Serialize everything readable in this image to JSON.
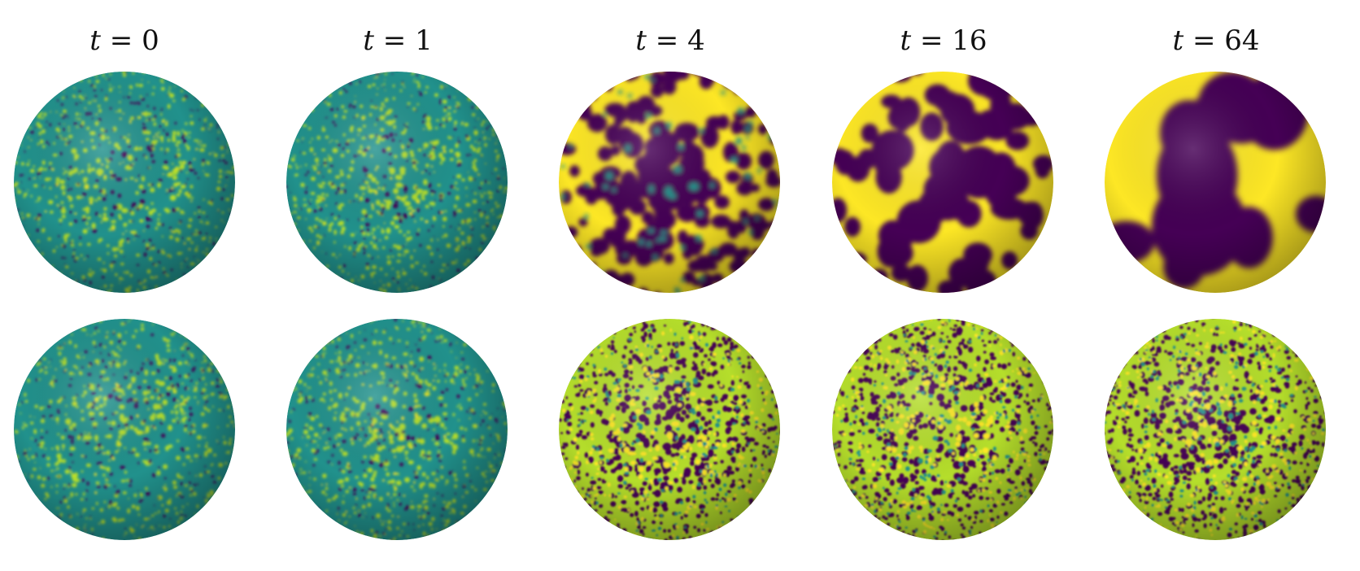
{
  "figure": {
    "columns": [
      {
        "var": "t",
        "eq": " = ",
        "value": "0",
        "top_regime": "noise",
        "bottom_regime": "noise"
      },
      {
        "var": "t",
        "eq": " = ",
        "value": "1",
        "top_regime": "noise",
        "bottom_regime": "noise"
      },
      {
        "var": "t",
        "eq": " = ",
        "value": "4",
        "top_regime": "blobs",
        "bottom_regime": "fine"
      },
      {
        "var": "t",
        "eq": " = ",
        "value": "16",
        "top_regime": "coarse",
        "bottom_regime": "fine"
      },
      {
        "var": "t",
        "eq": " = ",
        "value": "64",
        "top_regime": "large",
        "bottom_regime": "fine"
      }
    ],
    "colormap": {
      "dark": "#440154",
      "mid": "#21918c",
      "teal": "#2a9d8f",
      "bright": "#fde725",
      "lime": "#b5de2b"
    }
  }
}
